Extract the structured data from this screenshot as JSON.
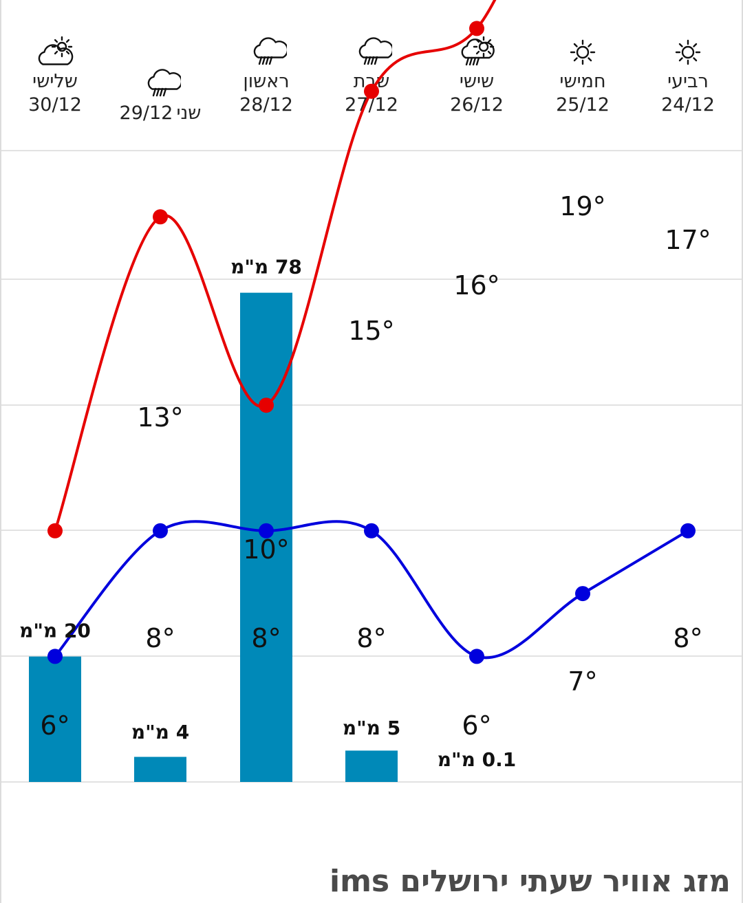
{
  "title": "מזג אוויר שעתי ירושלים ims",
  "colors": {
    "high": "#e60000",
    "low": "#0000dd",
    "bar": "#0089b8",
    "grid": "#e2e2e2"
  },
  "days": [
    {
      "name": "רביעי",
      "date": "24/12",
      "icon": "sun-icon"
    },
    {
      "name": "חמישי",
      "date": "25/12",
      "icon": "sun-icon"
    },
    {
      "name": "שישי",
      "date": "26/12",
      "icon": "sun-cloud-rain-icon"
    },
    {
      "name": "שבת",
      "date": "27/12",
      "icon": "cloud-rain-icon"
    },
    {
      "name": "ראשון",
      "date": "28/12",
      "icon": "cloud-rain-icon"
    },
    {
      "name": "שני",
      "date": "29/12",
      "icon": "cloud-rain-icon"
    },
    {
      "name": "שלישי",
      "date": "30/12",
      "icon": "partly-cloudy-icon"
    }
  ],
  "chart_data": {
    "type": "line",
    "categories": [
      "24/12",
      "25/12",
      "26/12",
      "27/12",
      "28/12",
      "29/12",
      "30/12"
    ],
    "series": [
      {
        "values": [
          17,
          19,
          16,
          15,
          10,
          13,
          8
        ]
      },
      {
        "values": [
          8,
          7,
          6,
          8,
          8,
          8,
          6
        ]
      }
    ],
    "temp_labels_high": [
      "17°",
      "19°",
      "16°",
      "15°",
      "10°",
      "13°",
      ""
    ],
    "temp_labels_low": [
      "8°",
      "7°",
      "6°",
      "8°",
      "8°",
      "8°",
      "6°"
    ],
    "precip": {
      "type": "bar",
      "values": [
        0,
        0,
        0.1,
        5,
        78,
        4,
        20
      ],
      "labels": [
        "",
        "",
        "0.1 מ\"מ",
        "5 מ\"מ",
        "78 מ\"מ",
        "4 מ\"מ",
        "20 מ\"מ"
      ]
    },
    "grid": true
  }
}
